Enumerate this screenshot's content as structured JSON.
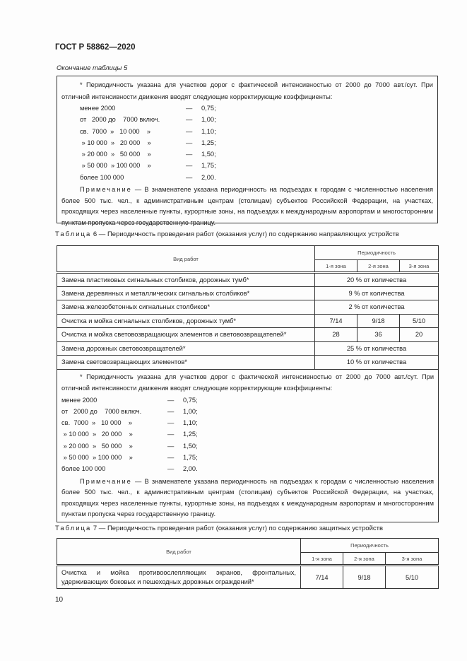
{
  "header": "ГОСТ Р 58862—2020",
  "continuation": "Окончание таблицы 5",
  "footnote": {
    "text": "* Периодичность указана для участков дорог с фактической интенсивностью от 2000 до 7000 авт./сут. При отличной интенсивности движения вводят следующие корректирующие коэффициенты:",
    "coefficients": [
      {
        "range": "менее 2000",
        "dash": "—",
        "value": "0,75;"
      },
      {
        "range": "от   2000 до    7000 включ.",
        "dash": "—",
        "value": "1,00;"
      },
      {
        "range": "св.  7000  »   10 000    »",
        "dash": "—",
        "value": "1,10;"
      },
      {
        "range": " » 10 000  »   20 000    »",
        "dash": "—",
        "value": "1,25;"
      },
      {
        "range": " » 20 000  »   50 000    »",
        "dash": "—",
        "value": "1,50;"
      },
      {
        "range": " » 50 000  » 100 000    »",
        "dash": "—",
        "value": "1,75;"
      },
      {
        "range": "более 100 000",
        "dash": "—",
        "value": "2,00."
      }
    ],
    "note_label": "Примечание",
    "note_text": " — В знаменателе указана периодичность на подъездах к городам с численностью населения более 500 тыс. чел., к административным центрам (столицам) субъектов Российской Федерации, на участках, проходящих через населенные пункты, курортные зоны, на подъездах к международным аэропортам и многосторонним пунктам пропуска через государственную границу."
  },
  "table6": {
    "label": "Таблица",
    "caption": " 6 — Периодичность проведения работ (оказания услуг) по содержанию направляющих устройств",
    "col_work": "Вид работ",
    "col_period": "Периодичность",
    "zones": [
      "1-я зона",
      "2-я зона",
      "3-я зона"
    ],
    "rows": [
      {
        "work": "Замена пластиковых сигнальных столбиков, дорожных тумб*",
        "merged": "20 % от количества"
      },
      {
        "work": "Замена деревянных и металлических сигнальных столбиков*",
        "merged": "9 % от количества"
      },
      {
        "work": "Замена железобетонных сигнальных столбиков*",
        "merged": "2 % от количества"
      },
      {
        "work": "Очистка и мойка сигнальных столбиков, дорожных тумб*",
        "z": [
          "7/14",
          "9/18",
          "5/10"
        ]
      },
      {
        "work": "Очистка и мойка световозвращающих элементов и световозвращателей*",
        "z": [
          "28",
          "36",
          "20"
        ]
      },
      {
        "work": "Замена дорожных световозвращателей*",
        "merged": "25 % от количества"
      },
      {
        "work": "Замена световозвращающих элементов*",
        "merged": "10 % от количества"
      }
    ]
  },
  "table7": {
    "label": "Таблица",
    "caption": " 7 — Периодичность проведения работ (оказания услуг) по содержанию защитных устройств",
    "col_work": "Вид работ",
    "col_period": "Периодичность",
    "zones": [
      "1-я зона",
      "2-я зона",
      "3-я зона"
    ],
    "rows": [
      {
        "work": "Очистка и мойка противоослепляющих экранов, фронтальных, удерживающих боковых и пешеходных дорожных ограждений*",
        "z": [
          "7/14",
          "9/18",
          "5/10"
        ]
      }
    ]
  },
  "page_number": "10"
}
